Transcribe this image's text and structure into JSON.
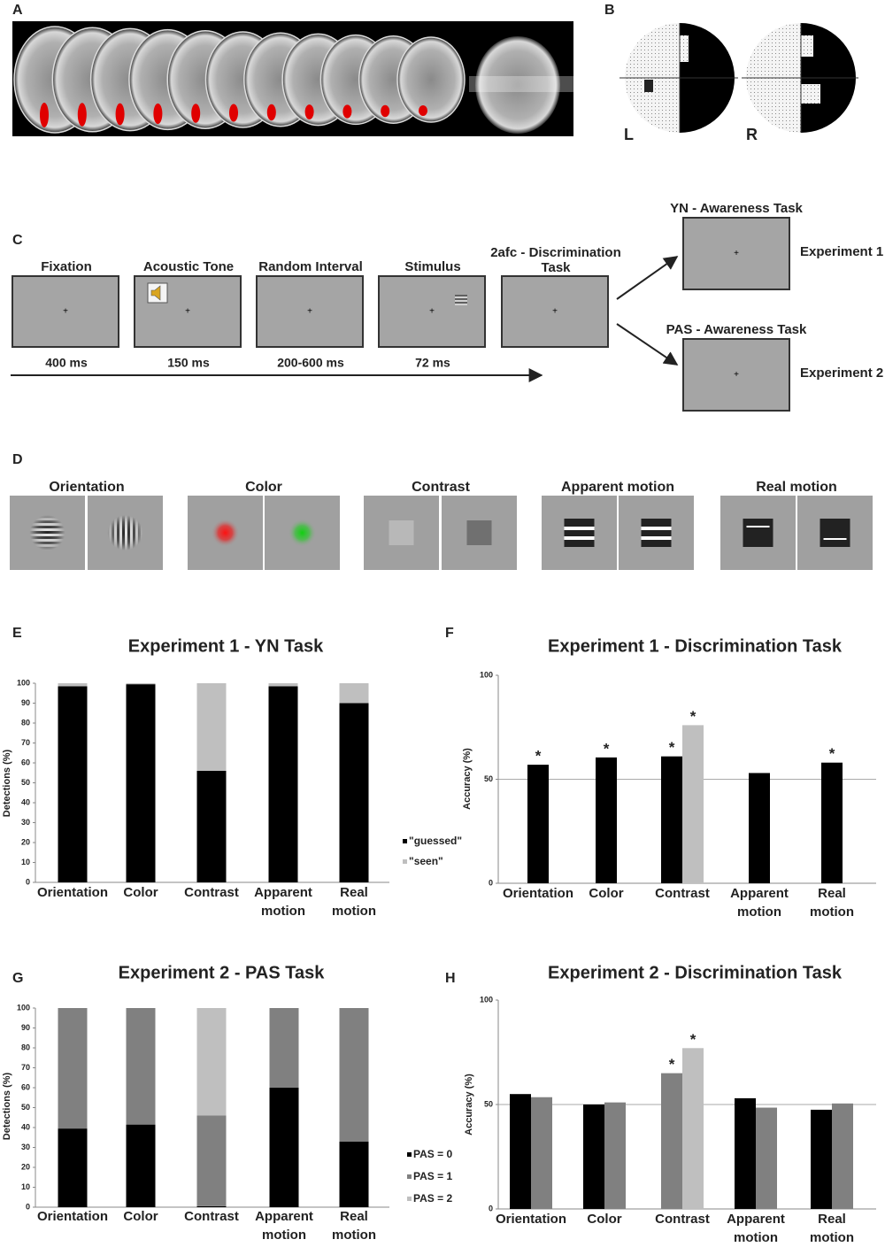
{
  "panels": [
    "A",
    "B",
    "C",
    "D",
    "E",
    "F",
    "G",
    "H"
  ],
  "visual_field": [
    "L",
    "R"
  ],
  "timeline": {
    "steps": [
      {
        "title": "Fixation",
        "duration": "400 ms"
      },
      {
        "title": "Acoustic Tone",
        "duration": "150 ms"
      },
      {
        "title": "Random Interval",
        "duration": "200-600 ms"
      },
      {
        "title": "Stimulus",
        "duration": "72 ms"
      },
      {
        "title": "2afc - Discrimination Task"
      }
    ],
    "tasks": [
      {
        "title": "YN - Awareness Task",
        "experiment": "Experiment 1"
      },
      {
        "title": "PAS - Awareness Task",
        "experiment": "Experiment 2"
      }
    ]
  },
  "stimuli": [
    "Orientation",
    "Color",
    "Contrast",
    "Apparent motion",
    "Real motion"
  ],
  "chart_data": [
    {
      "type": "bar",
      "stacked": true,
      "title": "Experiment 1 - YN Task",
      "ylabel": "Detections (%)",
      "categories": [
        "Orientation",
        "Color",
        "Contrast",
        "Apparent motion",
        "Real motion"
      ],
      "series": [
        {
          "name": "\"guessed\"",
          "color": "#000000",
          "values": [
            98.5,
            99.5,
            56,
            98.5,
            90
          ]
        },
        {
          "name": "\"seen\"",
          "color": "#bfbfbf",
          "values": [
            1.5,
            0.5,
            44,
            1.5,
            10
          ]
        }
      ],
      "ylim": [
        0,
        100
      ],
      "yticks": [
        0,
        10,
        20,
        30,
        40,
        50,
        60,
        70,
        80,
        90,
        100
      ],
      "grid": false
    },
    {
      "type": "bar",
      "stacked": false,
      "title": "Experiment 1 - Discrimination Task",
      "ylabel": "Accuracy (%)",
      "categories": [
        "Orientation",
        "Color",
        "Contrast",
        "Apparent motion",
        "Real motion"
      ],
      "series": [
        {
          "color": "#000000",
          "values": [
            57,
            60.5,
            61,
            53,
            58
          ],
          "annotations": [
            "*",
            "*",
            "*",
            null,
            "*"
          ]
        },
        {
          "color": "#bfbfbf",
          "values": [
            null,
            null,
            76,
            null,
            null
          ],
          "annotations": [
            null,
            null,
            "*",
            null,
            null
          ]
        }
      ],
      "ylim": [
        0,
        100
      ],
      "yticks": [
        0,
        50,
        100
      ],
      "refline": 50,
      "grid": false
    },
    {
      "type": "bar",
      "stacked": true,
      "title": "Experiment 2 - PAS Task",
      "ylabel": "Detections (%)",
      "categories": [
        "Orientation",
        "Color",
        "Contrast",
        "Apparent motion",
        "Real motion"
      ],
      "series": [
        {
          "name": "PAS = 0",
          "color": "#000000",
          "values": [
            39.5,
            41.5,
            0.5,
            60,
            33
          ]
        },
        {
          "name": "PAS = 1",
          "color": "#808080",
          "values": [
            60.5,
            58.5,
            45.5,
            40,
            67
          ]
        },
        {
          "name": "PAS = 2",
          "color": "#bfbfbf",
          "values": [
            0,
            0,
            54,
            0,
            0
          ]
        }
      ],
      "ylim": [
        0,
        100
      ],
      "yticks": [
        0,
        10,
        20,
        30,
        40,
        50,
        60,
        70,
        80,
        90,
        100
      ],
      "grid": false
    },
    {
      "type": "bar",
      "stacked": false,
      "title": "Experiment 2 - Discrimination Task",
      "ylabel": "Accuracy (%)",
      "categories": [
        "Orientation",
        "Color",
        "Contrast",
        "Apparent motion",
        "Real motion"
      ],
      "series": [
        {
          "color": "#000000",
          "values": [
            55,
            50,
            null,
            53,
            47.5
          ],
          "annotations": [
            null,
            null,
            null,
            null,
            null
          ]
        },
        {
          "color": "#808080",
          "values": [
            53.5,
            51,
            65,
            48.5,
            50.5
          ],
          "annotations": [
            null,
            null,
            "*",
            null,
            null
          ]
        },
        {
          "color": "#bfbfbf",
          "values": [
            null,
            null,
            77,
            null,
            null
          ],
          "annotations": [
            null,
            null,
            "*",
            null,
            null
          ]
        }
      ],
      "ylim": [
        0,
        100
      ],
      "yticks": [
        0,
        50,
        100
      ],
      "refline": 50,
      "grid": false
    }
  ]
}
